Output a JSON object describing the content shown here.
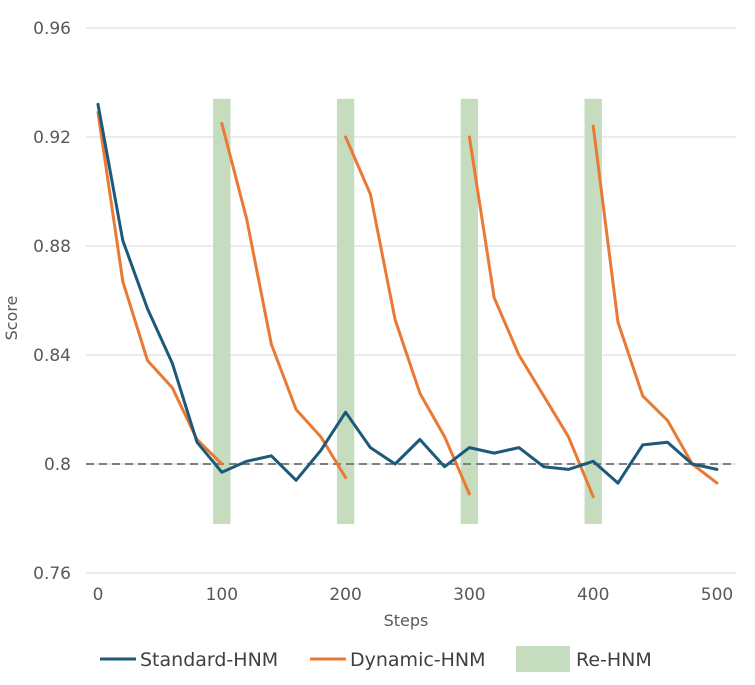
{
  "chart_data": {
    "type": "line",
    "title": "",
    "xlabel": "Steps",
    "ylabel": "Score",
    "xlim": [
      0,
      500
    ],
    "ylim": [
      0.76,
      0.96
    ],
    "x_ticks": [
      "0",
      "100",
      "200",
      "300",
      "400",
      "500"
    ],
    "y_ticks": [
      "0.76",
      "0.8",
      "0.84",
      "0.88",
      "0.92",
      "0.96"
    ],
    "grid": "horizontal",
    "legend_position": "bottom",
    "reference_line": {
      "y": 0.8,
      "style": "dashed",
      "color": "#7f7f7f"
    },
    "series": [
      {
        "name": "Standard-HNM",
        "color": "#1b5a7a",
        "points": [
          [
            0,
            0.932
          ],
          [
            20,
            0.882
          ],
          [
            40,
            0.857
          ],
          [
            60,
            0.837
          ],
          [
            80,
            0.808
          ],
          [
            100,
            0.797
          ],
          [
            120,
            0.801
          ],
          [
            140,
            0.803
          ],
          [
            160,
            0.794
          ],
          [
            180,
            0.805
          ],
          [
            200,
            0.819
          ],
          [
            220,
            0.806
          ],
          [
            240,
            0.8
          ],
          [
            260,
            0.809
          ],
          [
            280,
            0.799
          ],
          [
            300,
            0.806
          ],
          [
            320,
            0.804
          ],
          [
            340,
            0.806
          ],
          [
            360,
            0.799
          ],
          [
            380,
            0.798
          ],
          [
            400,
            0.801
          ],
          [
            420,
            0.793
          ],
          [
            440,
            0.807
          ],
          [
            460,
            0.808
          ],
          [
            480,
            0.8
          ],
          [
            500,
            0.798
          ]
        ]
      },
      {
        "name": "Dynamic-HNM",
        "color": "#e97a35",
        "segments": [
          [
            [
              0,
              0.929
            ],
            [
              20,
              0.867
            ],
            [
              40,
              0.838
            ],
            [
              60,
              0.828
            ],
            [
              80,
              0.809
            ],
            [
              100,
              0.8
            ]
          ],
          [
            [
              100,
              0.925
            ],
            [
              120,
              0.89
            ],
            [
              140,
              0.844
            ],
            [
              160,
              0.82
            ],
            [
              180,
              0.81
            ],
            [
              200,
              0.795
            ]
          ],
          [
            [
              200,
              0.92
            ],
            [
              220,
              0.899
            ],
            [
              240,
              0.853
            ],
            [
              260,
              0.826
            ],
            [
              280,
              0.81
            ],
            [
              300,
              0.789
            ]
          ],
          [
            [
              300,
              0.92
            ],
            [
              320,
              0.861
            ],
            [
              340,
              0.84
            ],
            [
              360,
              0.825
            ],
            [
              380,
              0.81
            ],
            [
              400,
              0.788
            ]
          ],
          [
            [
              400,
              0.924
            ],
            [
              420,
              0.852
            ],
            [
              440,
              0.825
            ],
            [
              460,
              0.816
            ],
            [
              480,
              0.8
            ],
            [
              500,
              0.793
            ]
          ]
        ]
      },
      {
        "name": "Re-HNM",
        "color": "#c5dcbf",
        "type": "band",
        "x_centers": [
          100,
          200,
          300,
          400
        ],
        "width": 14,
        "y_range": [
          0.778,
          0.934
        ]
      }
    ]
  }
}
